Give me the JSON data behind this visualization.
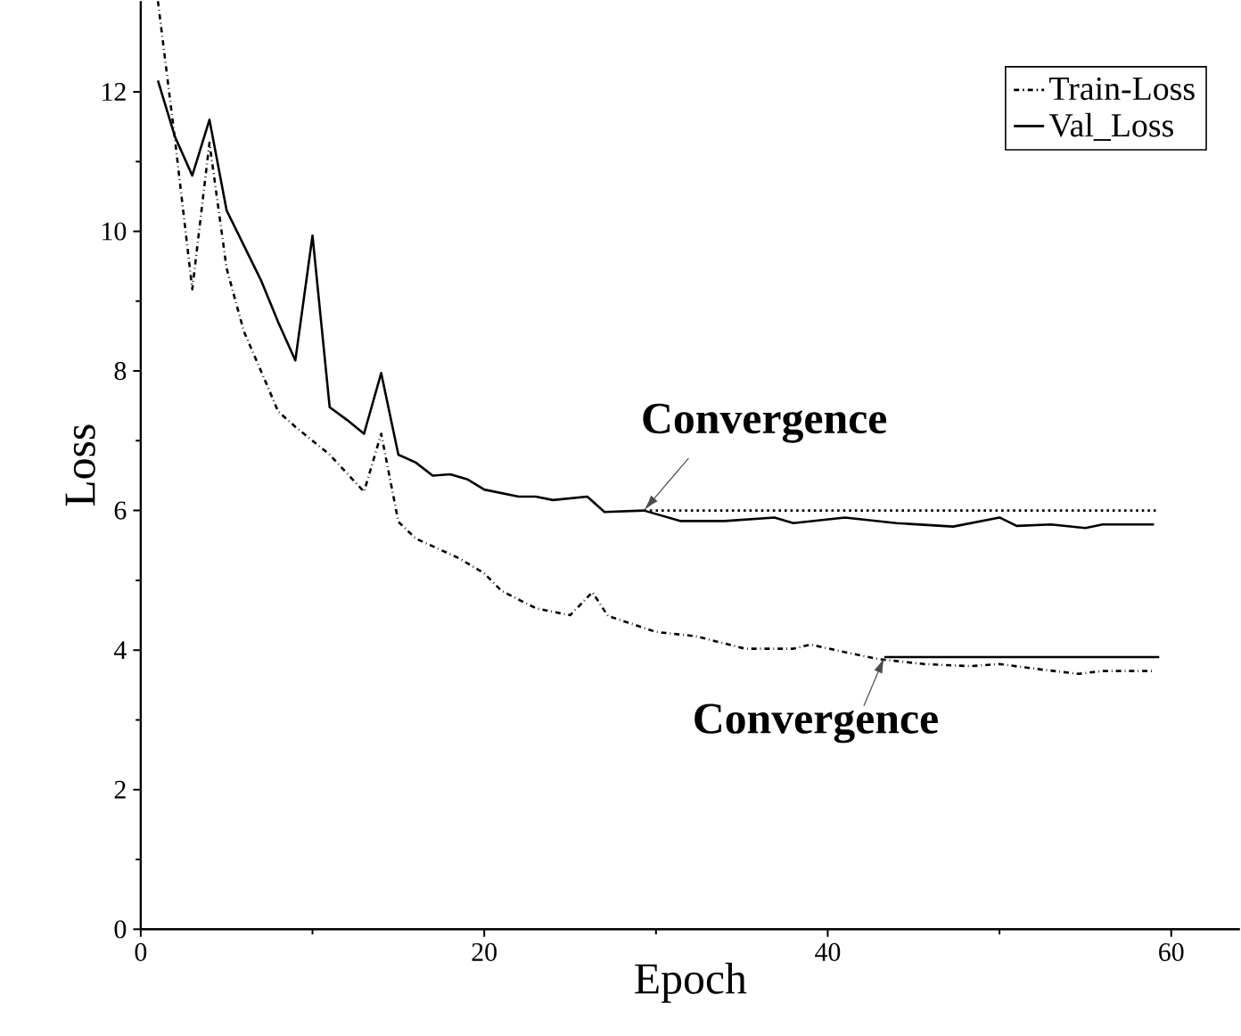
{
  "chart_data": {
    "type": "line",
    "xlabel": "Epoch",
    "ylabel": "Loss",
    "xlim": [
      0,
      64
    ],
    "ylim": [
      0,
      13.3
    ],
    "xticks": [
      0,
      20,
      40,
      60
    ],
    "yticks": [
      0,
      2,
      4,
      6,
      8,
      10,
      12
    ],
    "grid": false,
    "legend": "top right",
    "marker": "none",
    "series": [
      {
        "name": "Train-Loss",
        "color": "#000000",
        "line_style": "dashdot",
        "x": [
          1,
          2,
          3,
          4,
          5,
          6,
          7,
          8,
          9,
          10,
          11,
          13,
          14,
          15,
          16,
          18.5,
          20,
          21,
          23,
          25,
          26.3,
          27.2,
          30,
          32.3,
          35.2,
          38,
          39,
          41,
          43,
          45.6,
          48.3,
          50,
          52.5,
          54.6,
          56,
          59
        ],
        "values": [
          13.3,
          11.3,
          9.17,
          11.27,
          9.47,
          8.57,
          8.0,
          7.42,
          7.2,
          7.0,
          6.8,
          6.27,
          7.1,
          5.84,
          5.6,
          5.32,
          5.1,
          4.85,
          4.6,
          4.5,
          4.83,
          4.49,
          4.26,
          4.2,
          4.02,
          4.02,
          4.08,
          3.97,
          3.87,
          3.8,
          3.77,
          3.8,
          3.72,
          3.66,
          3.7,
          3.7
        ]
      },
      {
        "name": "Val_Loss",
        "color": "#000000",
        "line_style": "solid",
        "x": [
          1,
          2,
          3,
          4,
          5,
          6,
          7,
          8,
          9,
          10,
          11,
          12,
          13,
          14,
          15,
          16,
          17,
          18,
          19,
          20,
          22,
          23,
          24,
          26,
          27,
          29.3,
          31.4,
          34,
          36.9,
          38,
          41,
          44,
          47.3,
          50,
          51,
          53,
          55,
          56,
          59
        ],
        "values": [
          12.16,
          11.35,
          10.8,
          11.6,
          10.3,
          9.8,
          9.3,
          8.7,
          8.15,
          9.94,
          7.48,
          7.3,
          7.1,
          7.97,
          6.8,
          6.69,
          6.5,
          6.52,
          6.45,
          6.3,
          6.2,
          6.2,
          6.15,
          6.2,
          5.98,
          6.0,
          5.85,
          5.85,
          5.9,
          5.82,
          5.9,
          5.82,
          5.77,
          5.9,
          5.78,
          5.8,
          5.75,
          5.8,
          5.8
        ]
      },
      {
        "color": "#000000",
        "line_style": "dotted",
        "x": [
          29.3,
          59.3
        ],
        "values": [
          6.0,
          6.0
        ]
      },
      {
        "color": "#000000",
        "line_style": "solid",
        "x": [
          43.3,
          59.3
        ],
        "values": [
          3.9,
          3.9
        ]
      }
    ],
    "annotations": [
      {
        "text": "Convergence",
        "x": 29.3,
        "y": 6.0
      },
      {
        "text": "Convergence",
        "x": 43.3,
        "y": 3.9
      }
    ]
  }
}
